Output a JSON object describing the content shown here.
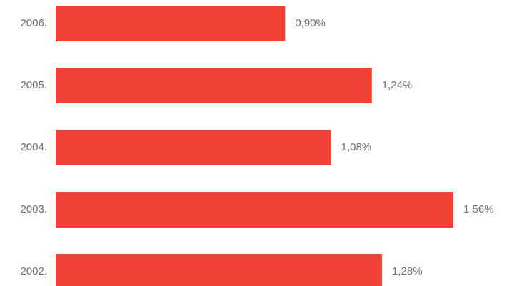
{
  "chart_data": {
    "type": "bar",
    "orientation": "horizontal",
    "categories": [
      "2006.",
      "2005.",
      "2004.",
      "2003.",
      "2002."
    ],
    "values": [
      0.9,
      1.24,
      1.08,
      1.56,
      1.28
    ],
    "value_labels": [
      "0,90%",
      "1,24%",
      "1,08%",
      "1,56%",
      "1,28%"
    ],
    "xlim": [
      0,
      1.56
    ],
    "grid": false,
    "legend": "none",
    "bar_color": "#ef4136",
    "text_color": "#6f6f6f"
  }
}
